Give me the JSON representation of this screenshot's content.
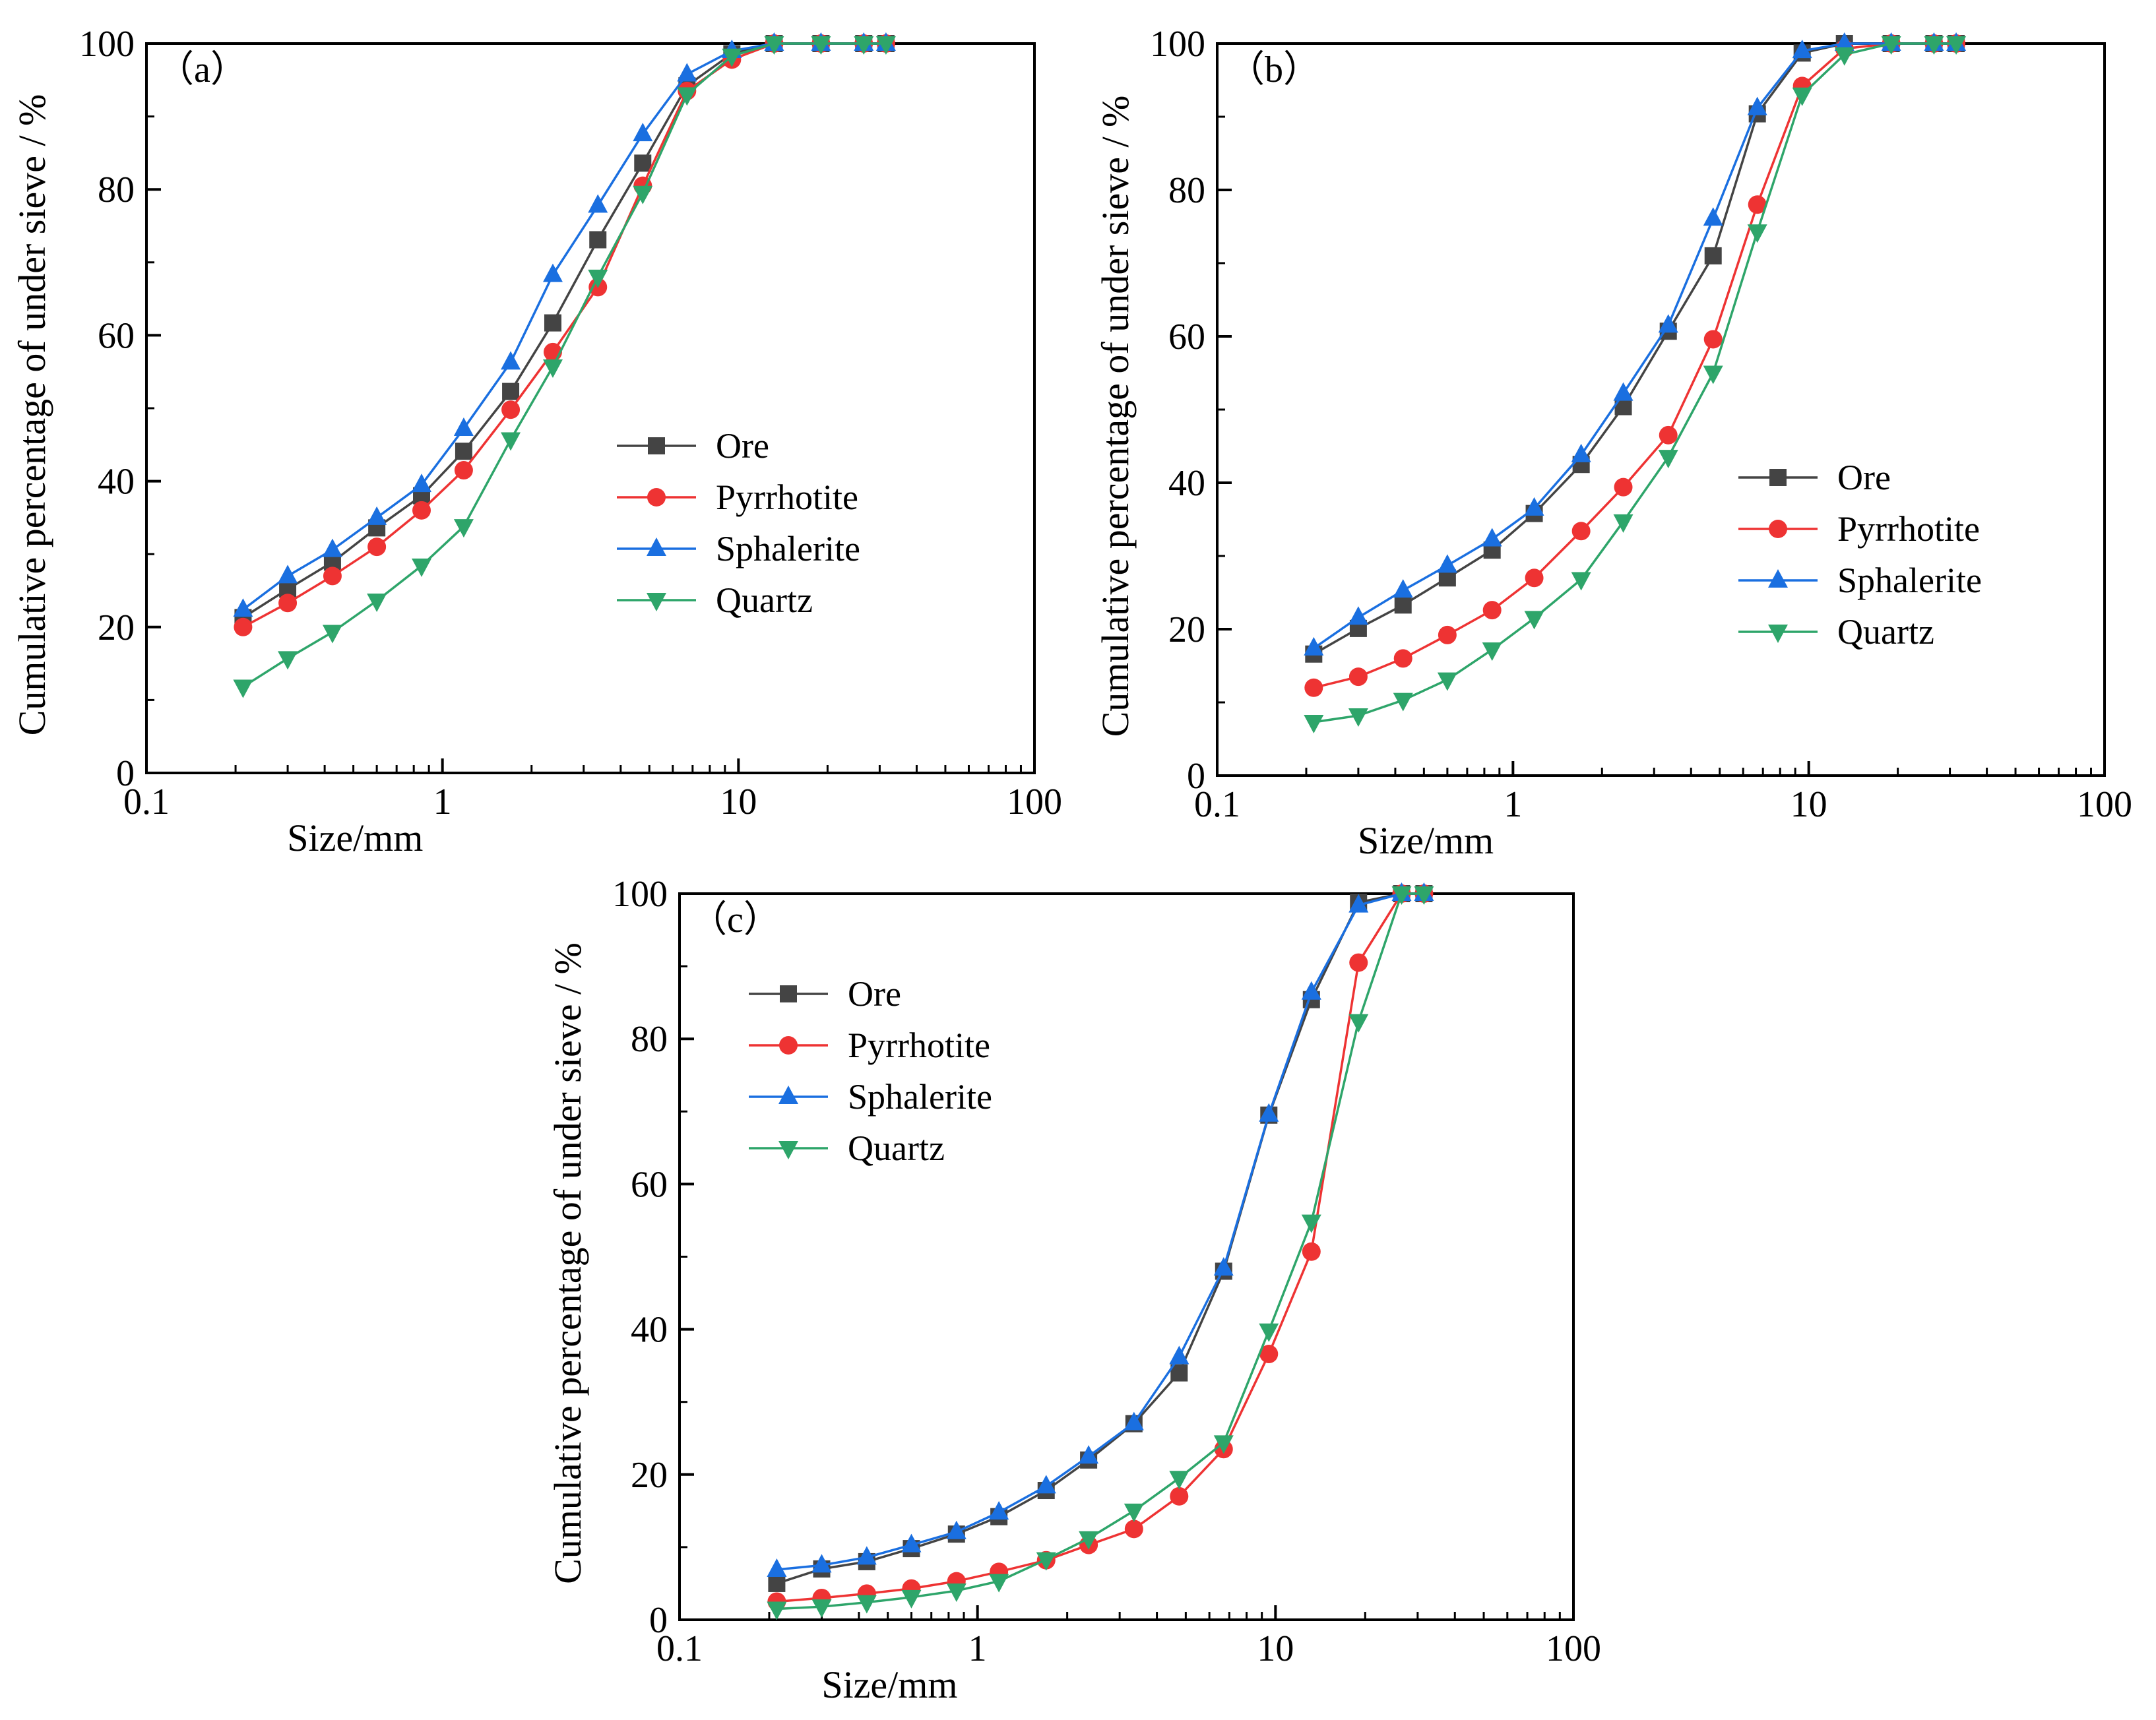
{
  "colors": {
    "Ore": "#444444",
    "Pyrrhotite": "#ee3333",
    "Sphalerite": "#1a6fe0",
    "Quartz": "#2ea56a"
  },
  "chart_data": [
    {
      "type": "line",
      "panel_label": "（a）",
      "xlabel": "Size/mm",
      "ylabel": "Cumulative percentage of under sieve / %",
      "x_scale": "log",
      "xlim": [
        0.1,
        100
      ],
      "ylim": [
        0,
        100
      ],
      "x_ticks": [
        "0.1",
        "1",
        "10",
        "100"
      ],
      "y_ticks": [
        "0",
        "20",
        "40",
        "60",
        "80",
        "100"
      ],
      "grid": false,
      "legend_position": "center-right",
      "x": [
        0.212,
        0.3,
        0.425,
        0.6,
        0.85,
        1.18,
        1.7,
        2.36,
        3.35,
        4.75,
        6.7,
        9.5,
        13.2,
        19,
        26.5,
        31.5
      ],
      "series": [
        {
          "name": "Ore",
          "marker": "square",
          "values": [
            21.3,
            25.2,
            28.9,
            33.6,
            38.0,
            44.1,
            52.3,
            61.7,
            73.1,
            83.6,
            94.2,
            98.6,
            100,
            100,
            100,
            100
          ]
        },
        {
          "name": "Pyrrhotite",
          "marker": "circle",
          "values": [
            20.0,
            23.3,
            27.0,
            31.0,
            36.0,
            41.5,
            49.8,
            57.7,
            66.6,
            80.5,
            93.5,
            97.8,
            100,
            100,
            100,
            100
          ]
        },
        {
          "name": "Sphalerite",
          "marker": "triangle-up",
          "values": [
            22.4,
            27.0,
            30.6,
            35.0,
            39.5,
            47.2,
            56.3,
            68.3,
            77.8,
            87.6,
            95.8,
            99.0,
            100,
            100,
            100,
            100
          ]
        },
        {
          "name": "Quartz",
          "marker": "triangle-down",
          "values": [
            11.8,
            15.7,
            19.3,
            23.6,
            28.4,
            33.8,
            45.7,
            55.7,
            68.0,
            79.5,
            93.0,
            98.3,
            100,
            100,
            100,
            100
          ]
        }
      ]
    },
    {
      "type": "line",
      "panel_label": "（b）",
      "xlabel": "Size/mm",
      "ylabel": "Cumulative percentage of under sieve / %",
      "x_scale": "log",
      "xlim": [
        0.1,
        100
      ],
      "ylim": [
        0,
        100
      ],
      "x_ticks": [
        "0.1",
        "1",
        "10",
        "100"
      ],
      "y_ticks": [
        "0",
        "20",
        "40",
        "60",
        "80",
        "100"
      ],
      "grid": false,
      "legend_position": "center-right",
      "x": [
        0.212,
        0.3,
        0.425,
        0.6,
        0.85,
        1.18,
        1.7,
        2.36,
        3.35,
        4.75,
        6.7,
        9.5,
        13.2,
        19,
        26.5,
        31.5
      ],
      "series": [
        {
          "name": "Ore",
          "marker": "square",
          "values": [
            16.6,
            20.1,
            23.3,
            27.0,
            30.8,
            35.8,
            42.5,
            50.4,
            60.7,
            71.0,
            90.4,
            98.7,
            100,
            100,
            100,
            100
          ]
        },
        {
          "name": "Pyrrhotite",
          "marker": "circle",
          "values": [
            12.0,
            13.5,
            16.0,
            19.2,
            22.6,
            27.0,
            33.4,
            39.4,
            46.5,
            59.6,
            78.0,
            94.2,
            99.3,
            100,
            100,
            100
          ]
        },
        {
          "name": "Sphalerite",
          "marker": "triangle-up",
          "values": [
            17.4,
            21.6,
            25.3,
            28.7,
            32.3,
            36.5,
            43.8,
            52.2,
            61.5,
            76.1,
            91.2,
            99.0,
            100,
            100,
            100,
            100
          ]
        },
        {
          "name": "Quartz",
          "marker": "triangle-down",
          "values": [
            7.3,
            8.2,
            10.3,
            13.1,
            17.2,
            21.5,
            26.8,
            34.7,
            43.5,
            55.0,
            74.3,
            93.0,
            98.5,
            100,
            100,
            100
          ]
        }
      ]
    },
    {
      "type": "line",
      "panel_label": "（c）",
      "xlabel": "Size/mm",
      "ylabel": "Cumulative percentage of under sieve / %",
      "x_scale": "log",
      "xlim": [
        0.1,
        100
      ],
      "ylim": [
        0,
        100
      ],
      "x_ticks": [
        "0.1",
        "1",
        "10",
        "100"
      ],
      "y_ticks": [
        "0",
        "20",
        "40",
        "60",
        "80",
        "100"
      ],
      "grid": false,
      "legend_position": "top-left",
      "x": [
        0.212,
        0.3,
        0.425,
        0.6,
        0.85,
        1.18,
        1.7,
        2.36,
        3.35,
        4.75,
        6.7,
        9.5,
        13.2,
        19,
        26.5,
        31.5
      ],
      "series": [
        {
          "name": "Ore",
          "marker": "square",
          "values": [
            5.0,
            7.0,
            8.0,
            9.8,
            11.8,
            14.2,
            17.8,
            22.0,
            27.0,
            34.0,
            48.0,
            69.5,
            85.4,
            98.8,
            100,
            100
          ]
        },
        {
          "name": "Pyrrhotite",
          "marker": "circle",
          "values": [
            2.5,
            3.0,
            3.6,
            4.3,
            5.3,
            6.6,
            8.2,
            10.3,
            12.5,
            17.0,
            23.5,
            36.6,
            50.7,
            90.5,
            100,
            100
          ]
        },
        {
          "name": "Sphalerite",
          "marker": "triangle-up",
          "values": [
            6.9,
            7.5,
            8.6,
            10.3,
            12.1,
            14.8,
            18.4,
            22.5,
            27.1,
            36.2,
            48.4,
            69.6,
            86.4,
            98.4,
            100,
            100
          ]
        },
        {
          "name": "Quartz",
          "marker": "triangle-down",
          "values": [
            1.5,
            1.8,
            2.4,
            3.1,
            4.0,
            5.3,
            8.3,
            11.2,
            15.0,
            19.5,
            24.4,
            39.8,
            54.8,
            82.4,
            100,
            100
          ]
        }
      ]
    }
  ]
}
